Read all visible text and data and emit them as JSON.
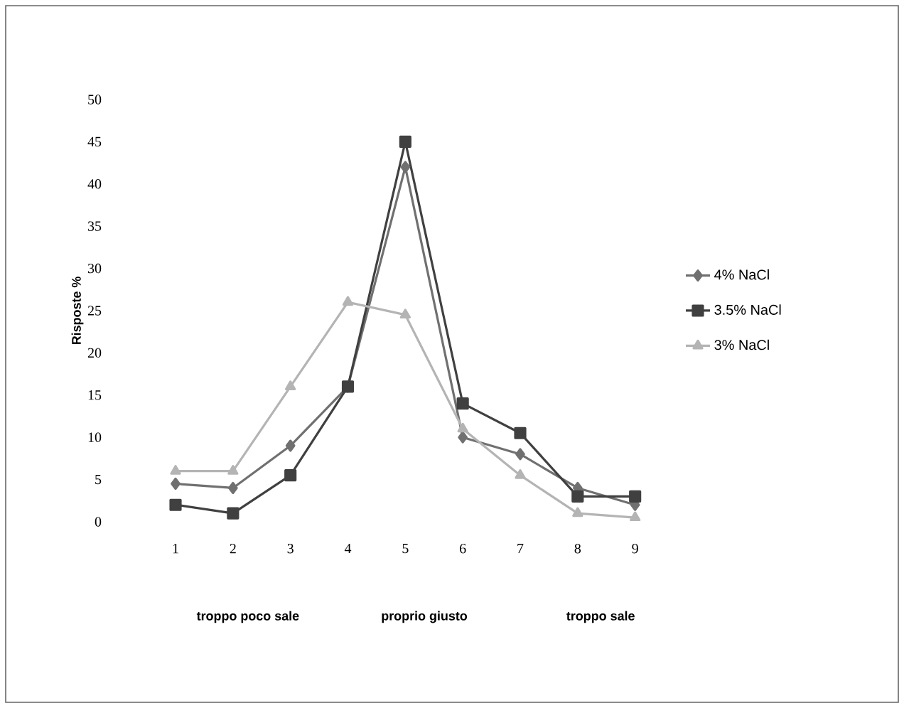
{
  "chart_data": {
    "type": "line",
    "ylabel": "Risposte %",
    "categories": [
      "1",
      "2",
      "3",
      "4",
      "5",
      "6",
      "7",
      "8",
      "9"
    ],
    "series": [
      {
        "name": "4% NaCl",
        "color": "#707070",
        "marker": "diamond",
        "values": [
          4.5,
          4,
          9,
          16,
          42,
          10,
          8,
          4,
          2
        ]
      },
      {
        "name": "3.5% NaCl",
        "color": "#404040",
        "marker": "square",
        "values": [
          2,
          1,
          5.5,
          16,
          45,
          14,
          10.5,
          3,
          3
        ]
      },
      {
        "name": "3% NaCl",
        "color": "#b4b4b4",
        "marker": "triangle",
        "values": [
          6,
          6,
          16,
          26,
          24.5,
          11,
          5.5,
          1,
          0.5
        ]
      }
    ],
    "ylim": [
      0,
      50
    ],
    "yticks": [
      0,
      5,
      10,
      15,
      20,
      25,
      30,
      35,
      40,
      45,
      50
    ],
    "legend": "right",
    "grid": false,
    "annotations": [
      "troppo poco sale",
      "proprio giusto",
      "troppo sale"
    ]
  }
}
